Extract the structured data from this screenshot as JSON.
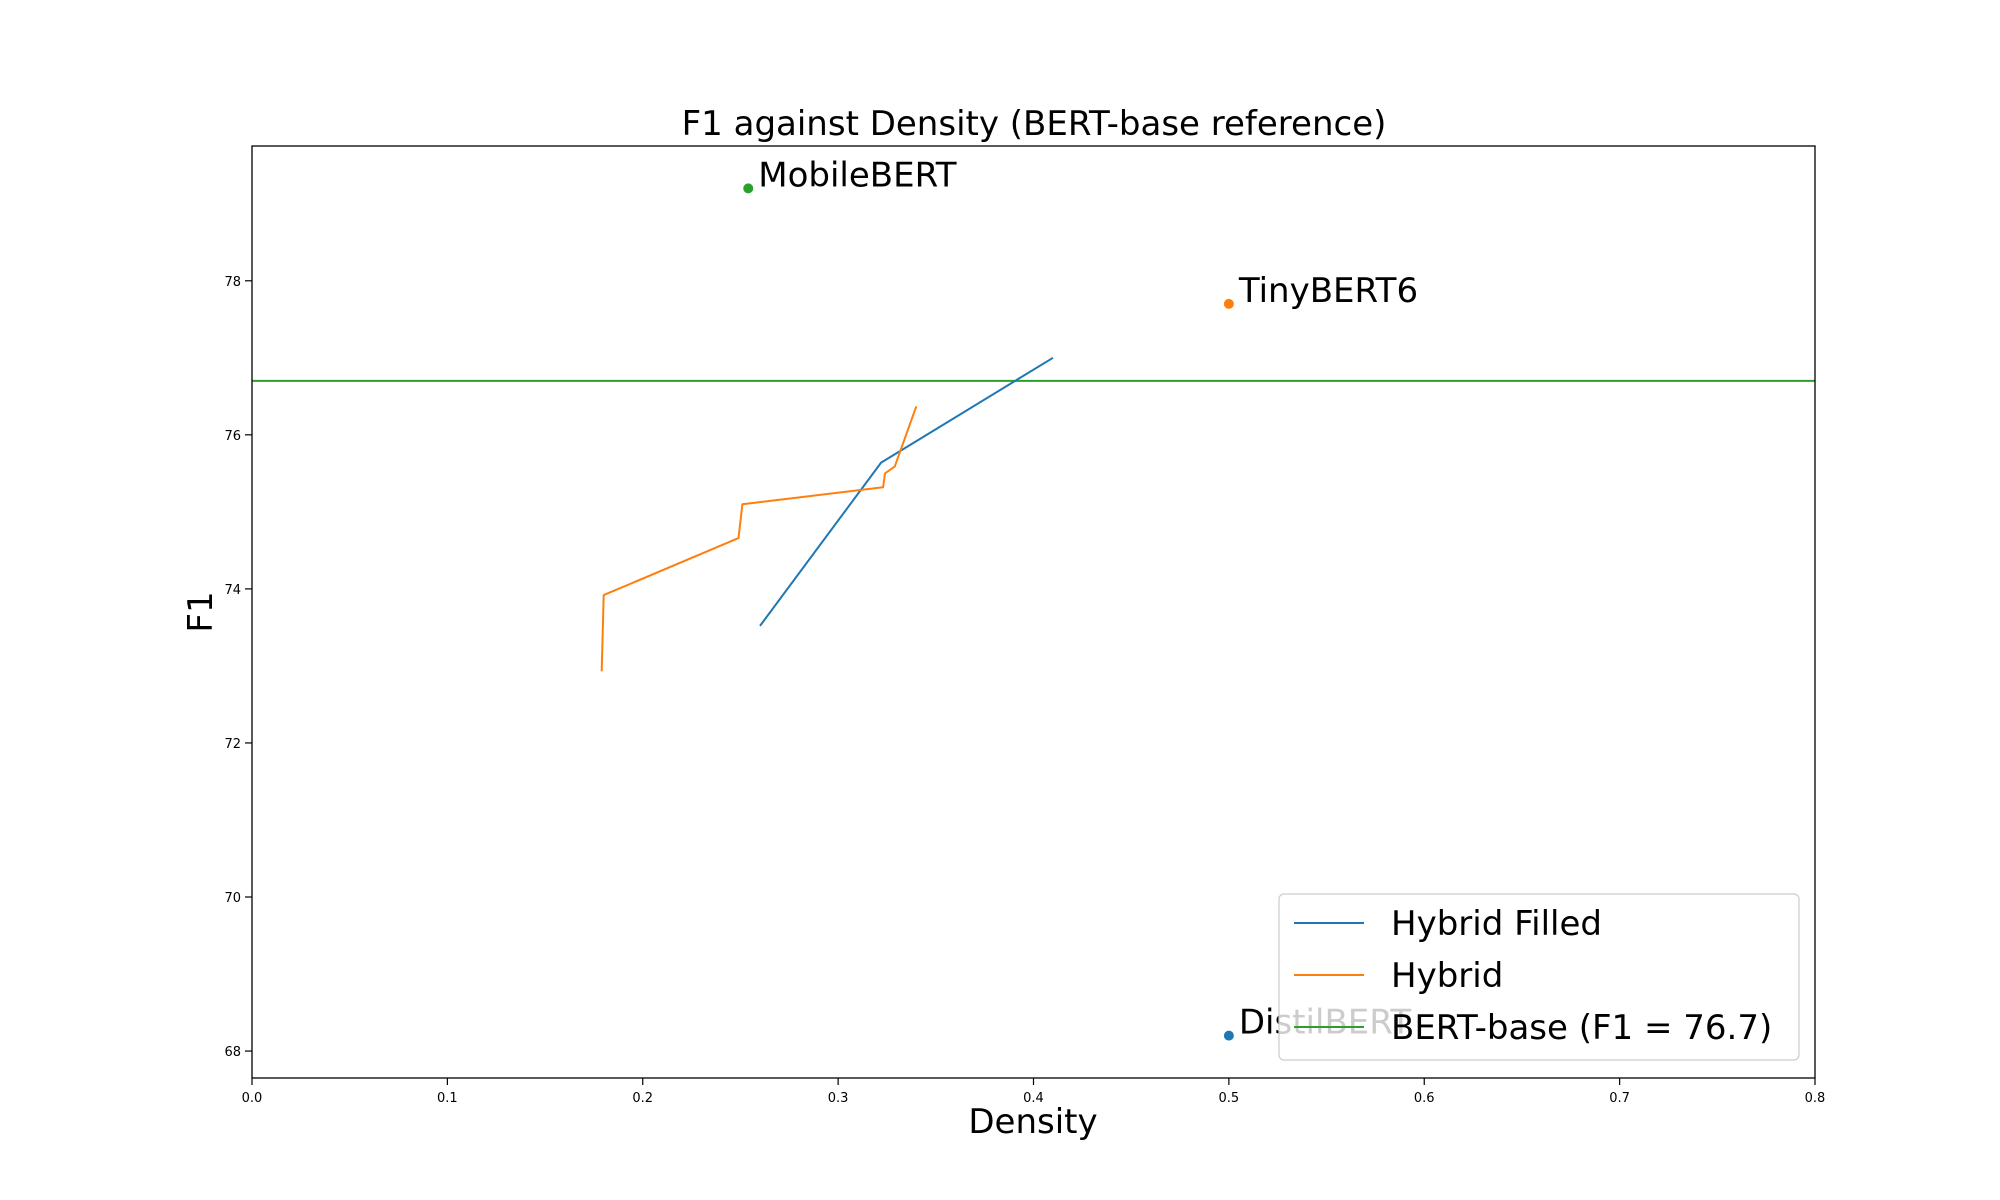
{
  "chart_data": {
    "type": "line",
    "title": "F1 against Density (BERT-base reference)",
    "xlabel": "Density",
    "ylabel": "F1",
    "xlim": [
      0.0,
      0.8
    ],
    "ylim": [
      67.65,
      79.75
    ],
    "xticks": [
      0.0,
      0.1,
      0.2,
      0.3,
      0.4,
      0.5,
      0.6,
      0.7,
      0.8
    ],
    "xtick_labels": [
      "0.0",
      "0.1",
      "0.2",
      "0.3",
      "0.4",
      "0.5",
      "0.6",
      "0.7",
      "0.8"
    ],
    "yticks": [
      68,
      70,
      72,
      74,
      76,
      78
    ],
    "ytick_labels": [
      "68",
      "70",
      "72",
      "74",
      "76",
      "78"
    ],
    "grid": false,
    "legend_position": "bottom-right",
    "series": [
      {
        "name": "Hybrid Filled",
        "color": "#1f77b4",
        "x": [
          0.26,
          0.322,
          0.41
        ],
        "y": [
          73.52,
          75.64,
          77.0
        ]
      },
      {
        "name": "Hybrid",
        "color": "#ff7f0e",
        "x": [
          0.179,
          0.18,
          0.249,
          0.251,
          0.323,
          0.324,
          0.329,
          0.34
        ],
        "y": [
          72.93,
          73.92,
          74.66,
          75.1,
          75.32,
          75.5,
          75.59,
          76.37
        ]
      }
    ],
    "reference_line": {
      "name": "BERT-base (F1 = 76.7)",
      "color": "#2ca02c",
      "y": 76.7
    },
    "points": [
      {
        "label": "MobileBERT",
        "x": 0.254,
        "y": 79.2,
        "color": "#2ca02c"
      },
      {
        "label": "TinyBERT6",
        "x": 0.5,
        "y": 77.7,
        "color": "#ff7f0e"
      },
      {
        "label": "DistilBERT",
        "x": 0.5,
        "y": 68.2,
        "color": "#1f77b4"
      }
    ]
  }
}
